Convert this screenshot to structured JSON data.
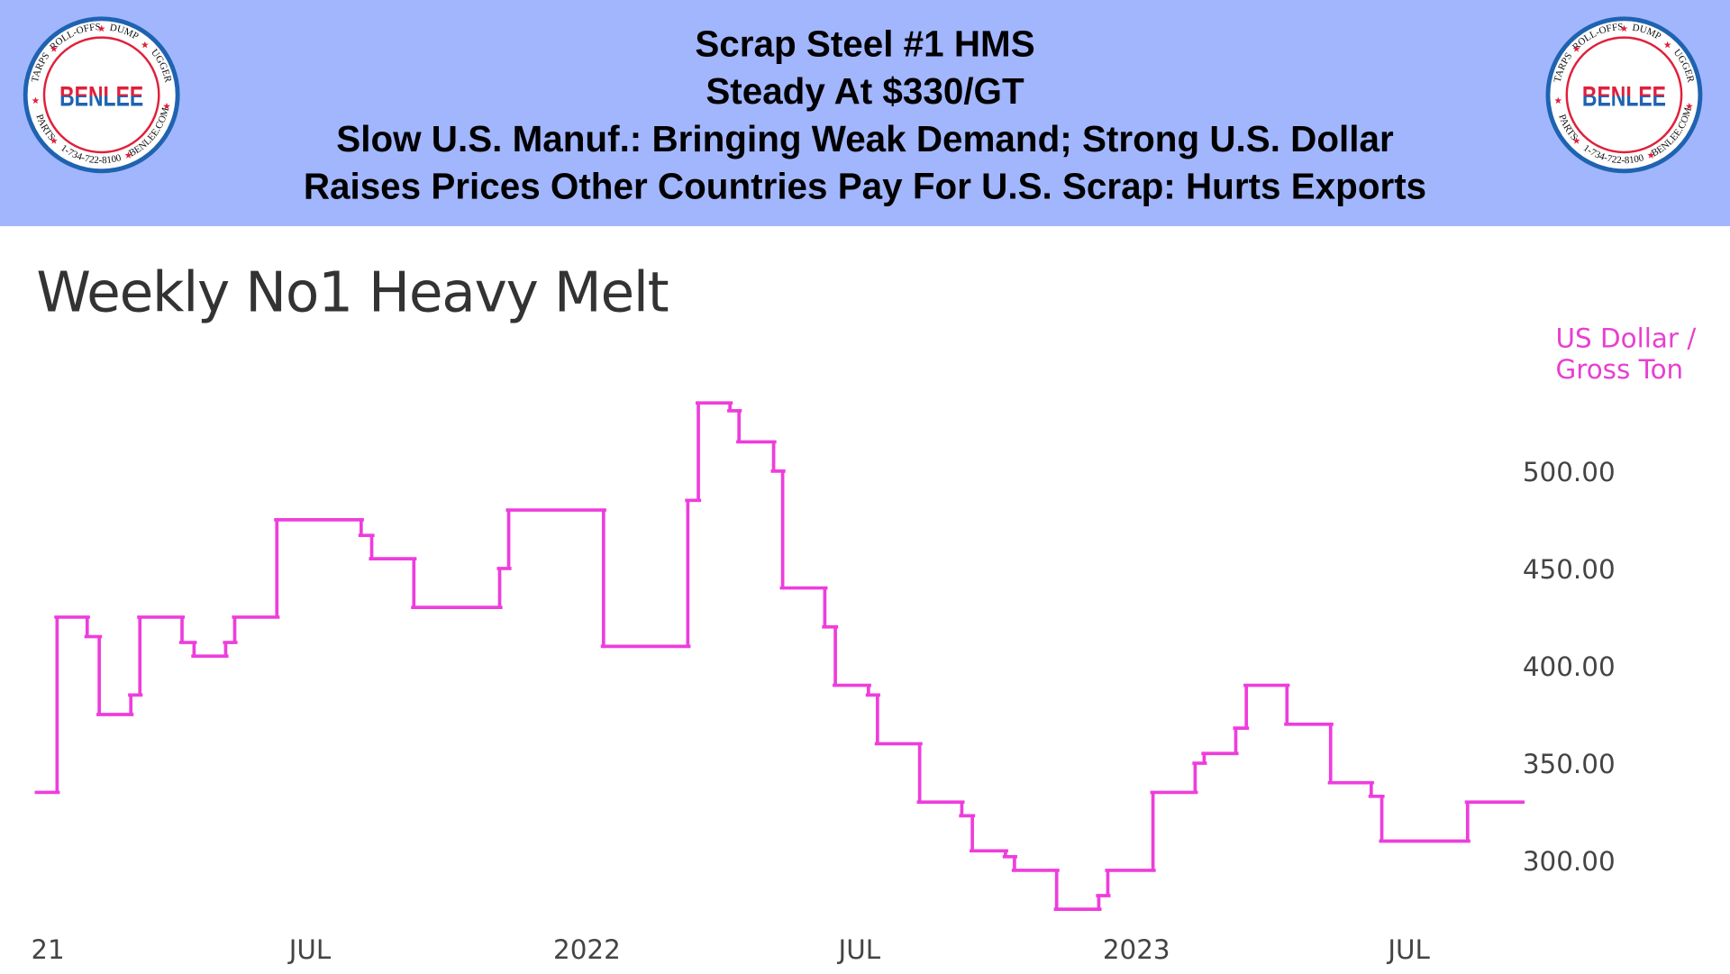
{
  "header": {
    "lines": [
      "Scrap Steel #1 HMS",
      "Steady At $330/GT",
      "Slow U.S. Manuf.: Bringing Weak Demand; Strong U.S. Dollar",
      "Raises Prices Other Countries Pay For U.S. Scrap: Hurts Exports"
    ],
    "background_color": "#a2b6fd"
  },
  "logo": {
    "name": "BENLEE",
    "ring_text": "TARPS ★ ROLL-OFFS ★ DUMPS ★ LUGGERS ★ BENLEE.COM ★ 1-734-722-8100 ★ PARTS ★",
    "colors": {
      "red": "#e0203a",
      "blue": "#1f63b0"
    }
  },
  "chart_data": {
    "type": "line",
    "step": true,
    "title": "Weekly No1 Heavy Melt",
    "ylabel": [
      "US Dollar /",
      "Gross Ton"
    ],
    "line_color": "#ee3ddc",
    "ylim": [
      265,
      540
    ],
    "yticks": [
      300,
      350,
      400,
      450,
      500
    ],
    "ytick_labels": [
      "300.00",
      "350.00",
      "400.00",
      "450.00",
      "500.00"
    ],
    "xlim": [
      "2021-01-01",
      "2023-09-14"
    ],
    "xticks": [
      {
        "date": "2021-01-01",
        "label": "2021"
      },
      {
        "date": "2021-07-01",
        "label": "JUL"
      },
      {
        "date": "2022-01-01",
        "label": "2022"
      },
      {
        "date": "2022-07-01",
        "label": "JUL"
      },
      {
        "date": "2023-01-01",
        "label": "2023"
      },
      {
        "date": "2023-07-01",
        "label": "JUL"
      }
    ],
    "grid": false,
    "series": [
      {
        "steps": [
          {
            "date": "2021-01-01",
            "value": 335
          },
          {
            "date": "2021-01-14",
            "value": 425
          },
          {
            "date": "2021-02-03",
            "value": 415
          },
          {
            "date": "2021-02-11",
            "value": 375
          },
          {
            "date": "2021-03-04",
            "value": 385
          },
          {
            "date": "2021-03-10",
            "value": 425
          },
          {
            "date": "2021-04-07",
            "value": 412
          },
          {
            "date": "2021-04-15",
            "value": 405
          },
          {
            "date": "2021-05-06",
            "value": 412
          },
          {
            "date": "2021-05-12",
            "value": 425
          },
          {
            "date": "2021-06-09",
            "value": 475
          },
          {
            "date": "2021-08-04",
            "value": 467
          },
          {
            "date": "2021-08-11",
            "value": 455
          },
          {
            "date": "2021-09-08",
            "value": 430
          },
          {
            "date": "2021-11-04",
            "value": 450
          },
          {
            "date": "2021-11-10",
            "value": 480
          },
          {
            "date": "2022-01-12",
            "value": 410
          },
          {
            "date": "2022-03-09",
            "value": 485
          },
          {
            "date": "2022-03-16",
            "value": 535
          },
          {
            "date": "2022-04-06",
            "value": 531
          },
          {
            "date": "2022-04-12",
            "value": 515
          },
          {
            "date": "2022-05-05",
            "value": 500
          },
          {
            "date": "2022-05-11",
            "value": 440
          },
          {
            "date": "2022-06-08",
            "value": 420
          },
          {
            "date": "2022-06-15",
            "value": 390
          },
          {
            "date": "2022-07-07",
            "value": 385
          },
          {
            "date": "2022-07-13",
            "value": 360
          },
          {
            "date": "2022-08-10",
            "value": 330
          },
          {
            "date": "2022-09-07",
            "value": 323
          },
          {
            "date": "2022-09-14",
            "value": 305
          },
          {
            "date": "2022-10-06",
            "value": 302
          },
          {
            "date": "2022-10-12",
            "value": 295
          },
          {
            "date": "2022-11-09",
            "value": 275
          },
          {
            "date": "2022-12-07",
            "value": 282
          },
          {
            "date": "2022-12-13",
            "value": 295
          },
          {
            "date": "2023-01-12",
            "value": 335
          },
          {
            "date": "2023-02-09",
            "value": 350
          },
          {
            "date": "2023-02-15",
            "value": 355
          },
          {
            "date": "2023-03-08",
            "value": 368
          },
          {
            "date": "2023-03-15",
            "value": 390
          },
          {
            "date": "2023-04-11",
            "value": 370
          },
          {
            "date": "2023-05-10",
            "value": 340
          },
          {
            "date": "2023-06-06",
            "value": 333
          },
          {
            "date": "2023-06-13",
            "value": 310
          },
          {
            "date": "2023-08-09",
            "value": 330
          }
        ],
        "end_date": "2023-09-14"
      }
    ]
  }
}
